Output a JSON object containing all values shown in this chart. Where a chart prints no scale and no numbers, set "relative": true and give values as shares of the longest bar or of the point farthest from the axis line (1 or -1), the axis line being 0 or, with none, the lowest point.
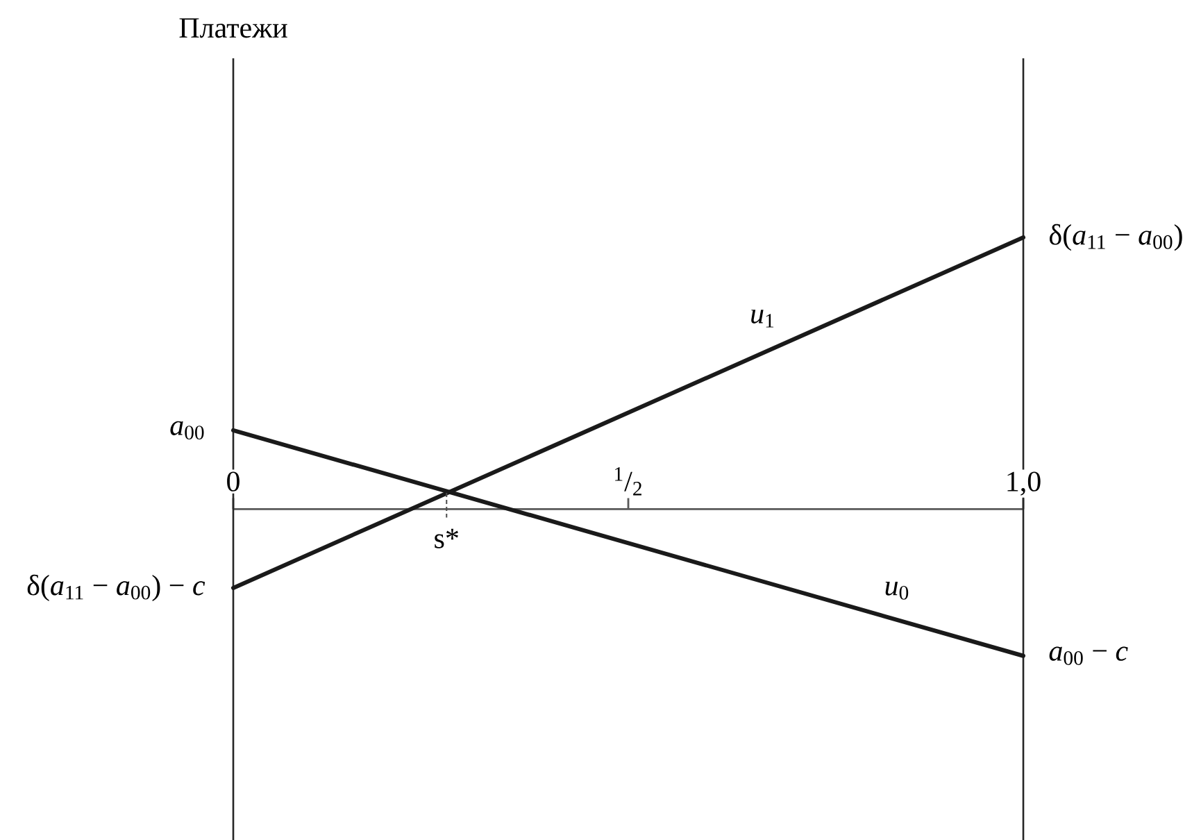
{
  "chart_data": {
    "type": "line",
    "relative": true,
    "xlim": [
      0,
      1
    ],
    "xticks": [
      {
        "value": 0,
        "label": "0"
      },
      {
        "value": 0.5,
        "label": "$^{1}$/$_{2}$"
      },
      {
        "value": 1,
        "label": "1,0"
      }
    ],
    "x": [
      0,
      1
    ],
    "series": [
      {
        "name": "*u*$_{1}$",
        "color": "#1a1a1a",
        "values": [
          -0.29,
          1
        ]
      },
      {
        "name": "*u*$_{0}$",
        "color": "#1a1a1a",
        "values": [
          0.29,
          -0.54
        ]
      }
    ],
    "annotations": [
      "Платежи",
      {
        "text": "*a*$_{00}$",
        "x": 0,
        "y": 0.29
      },
      {
        "text": "δ(*a*$_{11}$ − *a*$_{00}$) − *c*",
        "x": 0,
        "y": -0.29
      },
      {
        "text": "δ(*a*$_{11}$ − *a*$_{00}$)",
        "x": 1,
        "y": 1
      },
      {
        "text": "*a*$_{00}$ − *c*",
        "x": 1,
        "y": -0.54
      },
      {
        "text": "s*",
        "x": 0.27,
        "y": 0.06
      }
    ],
    "marker": "none",
    "line_style": "solid"
  }
}
